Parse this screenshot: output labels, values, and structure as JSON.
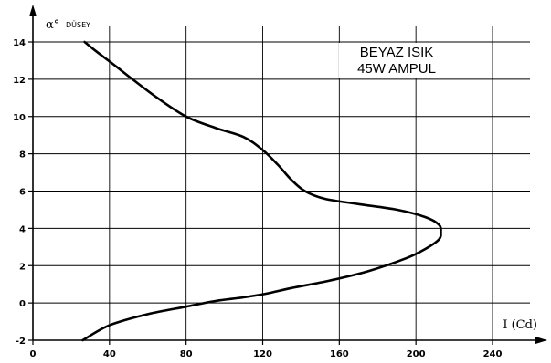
{
  "chart_data": {
    "type": "line",
    "title": "",
    "xlabel": "I (Cd)",
    "ylabel": "α° DÜSEY",
    "ylabel_symbol": "α°",
    "ylabel_text": "DÜSEY",
    "xlim": [
      0,
      260
    ],
    "ylim": [
      -2,
      15
    ],
    "x_ticks": [
      0,
      40,
      80,
      120,
      160,
      200,
      240
    ],
    "x_tick_labels": [
      "0",
      "40",
      "80",
      "120",
      "160",
      "200",
      "240"
    ],
    "y_ticks": [
      -2,
      0,
      2,
      4,
      6,
      8,
      10,
      12,
      14
    ],
    "y_tick_labels": [
      "-2",
      "0",
      "2",
      "4",
      "6",
      "8",
      "10",
      "12",
      "14"
    ],
    "grid": true,
    "annotation": [
      "BEYAZ ISIK",
      "45W AMPUL"
    ],
    "series": [
      {
        "x": [
          26,
          40,
          60,
          80,
          95,
          110,
          122,
          135,
          155,
          175,
          195,
          205,
          212,
          213,
          212,
          205,
          190,
          170,
          152,
          142,
          135,
          128,
          120,
          110,
          95,
          80,
          65,
          52,
          42,
          33,
          27
        ],
        "y": [
          -2,
          -1.2,
          -0.6,
          -0.2,
          0.1,
          0.3,
          0.5,
          0.8,
          1.2,
          1.7,
          2.4,
          2.9,
          3.4,
          3.8,
          4.2,
          4.6,
          5.0,
          5.3,
          5.6,
          6.0,
          6.6,
          7.4,
          8.2,
          8.9,
          9.4,
          10.0,
          11.0,
          12.0,
          12.8,
          13.5,
          14.0
        ]
      }
    ],
    "colors": {
      "line": "#000000",
      "grid": "#000000",
      "background": "#ffffff"
    }
  }
}
